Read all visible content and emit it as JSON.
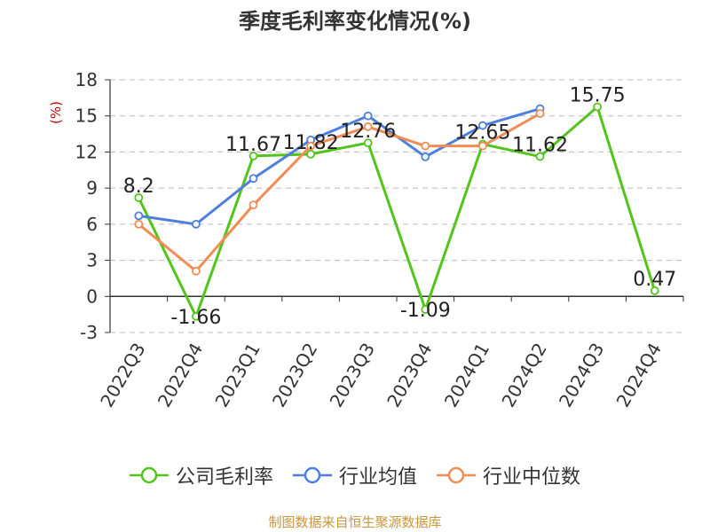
{
  "chart_data": {
    "type": "line",
    "title": "季度毛利率变化情况(%)",
    "ylabel": "(%)",
    "xlabel": "",
    "ylim": [
      -3,
      18
    ],
    "yticks": [
      18,
      15,
      12,
      9,
      6,
      3,
      0,
      -3
    ],
    "grid": true,
    "legend_position": "bottom",
    "categories": [
      "2022Q3",
      "2022Q4",
      "2023Q1",
      "2023Q2",
      "2023Q3",
      "2023Q4",
      "2024Q1",
      "2024Q2",
      "2024Q3",
      "2024Q4"
    ],
    "series": [
      {
        "name": "公司毛利率",
        "color": "#52c41a",
        "label_values": true,
        "values": [
          8.2,
          -1.66,
          11.67,
          11.82,
          12.76,
          -1.09,
          12.65,
          11.62,
          15.75,
          0.47
        ]
      },
      {
        "name": "行业均值",
        "color": "#4e7fdc",
        "label_values": false,
        "values": [
          6.7,
          6.0,
          9.8,
          13.0,
          15.0,
          11.6,
          14.2,
          15.6,
          null,
          null
        ]
      },
      {
        "name": "行业中位数",
        "color": "#f28c55",
        "label_values": false,
        "values": [
          6.0,
          2.1,
          7.6,
          12.5,
          14.1,
          12.5,
          12.5,
          15.2,
          null,
          null
        ]
      }
    ]
  },
  "source_text": "制图数据来自恒生聚源数据库"
}
